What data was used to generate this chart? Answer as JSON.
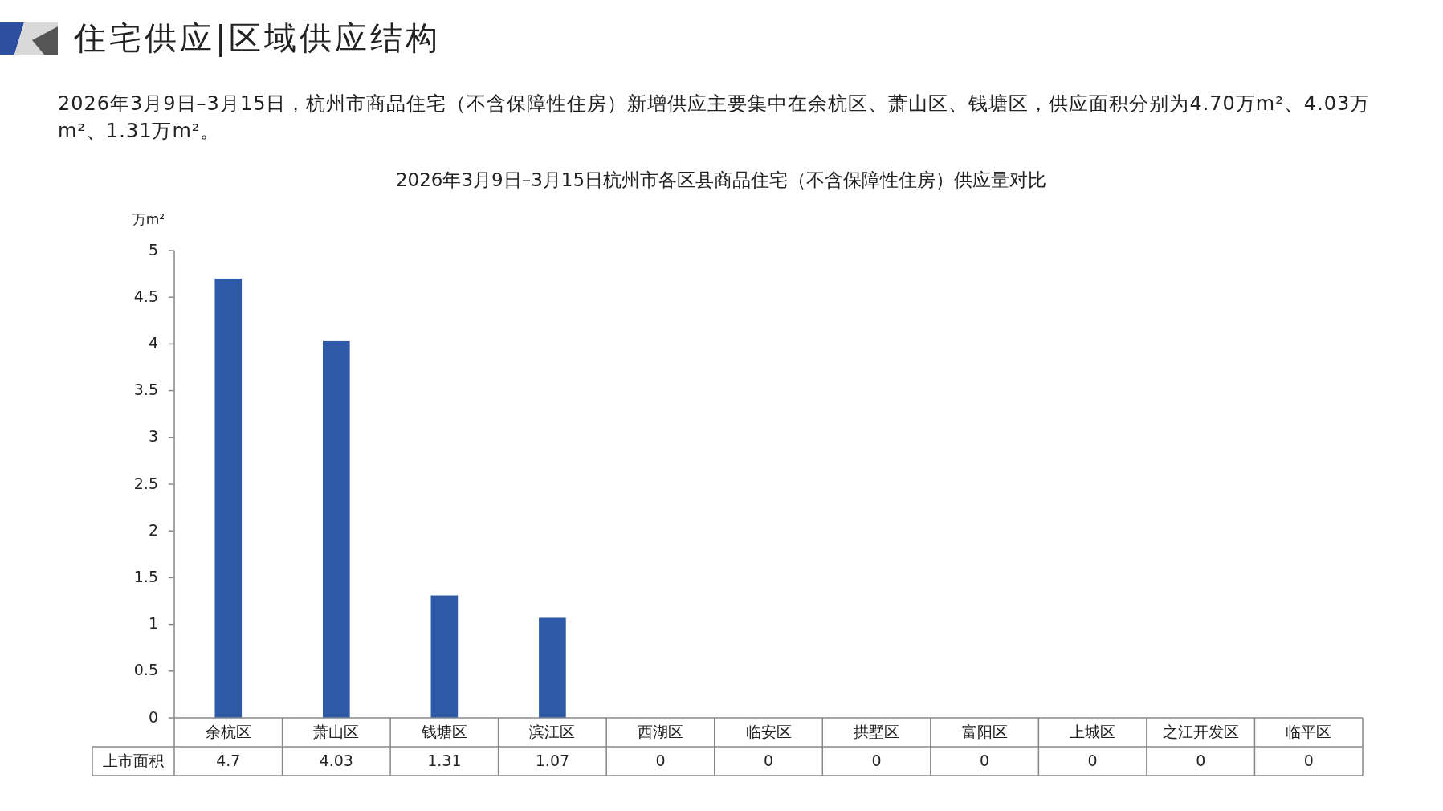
{
  "chart_data": {
    "type": "bar",
    "title": "2026年3月9日–3月15日杭州市各区县商品住宅（不含保障性住房）供应量对比",
    "ylabel": "万m²",
    "annotations": [
      "住宅供应|区域供应结构",
      "2026年3月9日–3月15日，杭州市商品住宅（不含保障性住房）新增供应主要集中在余杭区、萧山区、钱塘区，供应面积分别为4.70万m²、4.03万m²、1.31万m²。"
    ],
    "categories": [
      "余杭区",
      "萧山区",
      "钱塘区",
      "滨江区",
      "西湖区",
      "临安区",
      "拱墅区",
      "富阳区",
      "上城区",
      "之江开发区",
      "临平区"
    ],
    "series": [
      {
        "name": "上市面积",
        "color": "#2e5aa8",
        "values": [
          4.7,
          4.03,
          1.31,
          1.07,
          0,
          0,
          0,
          0,
          0,
          0,
          0
        ]
      }
    ],
    "ylim": [
      0,
      5
    ],
    "yticks": [
      0,
      0.5,
      1,
      1.5,
      2,
      2.5,
      3,
      3.5,
      4,
      4.5,
      5
    ],
    "data_labels": true
  }
}
